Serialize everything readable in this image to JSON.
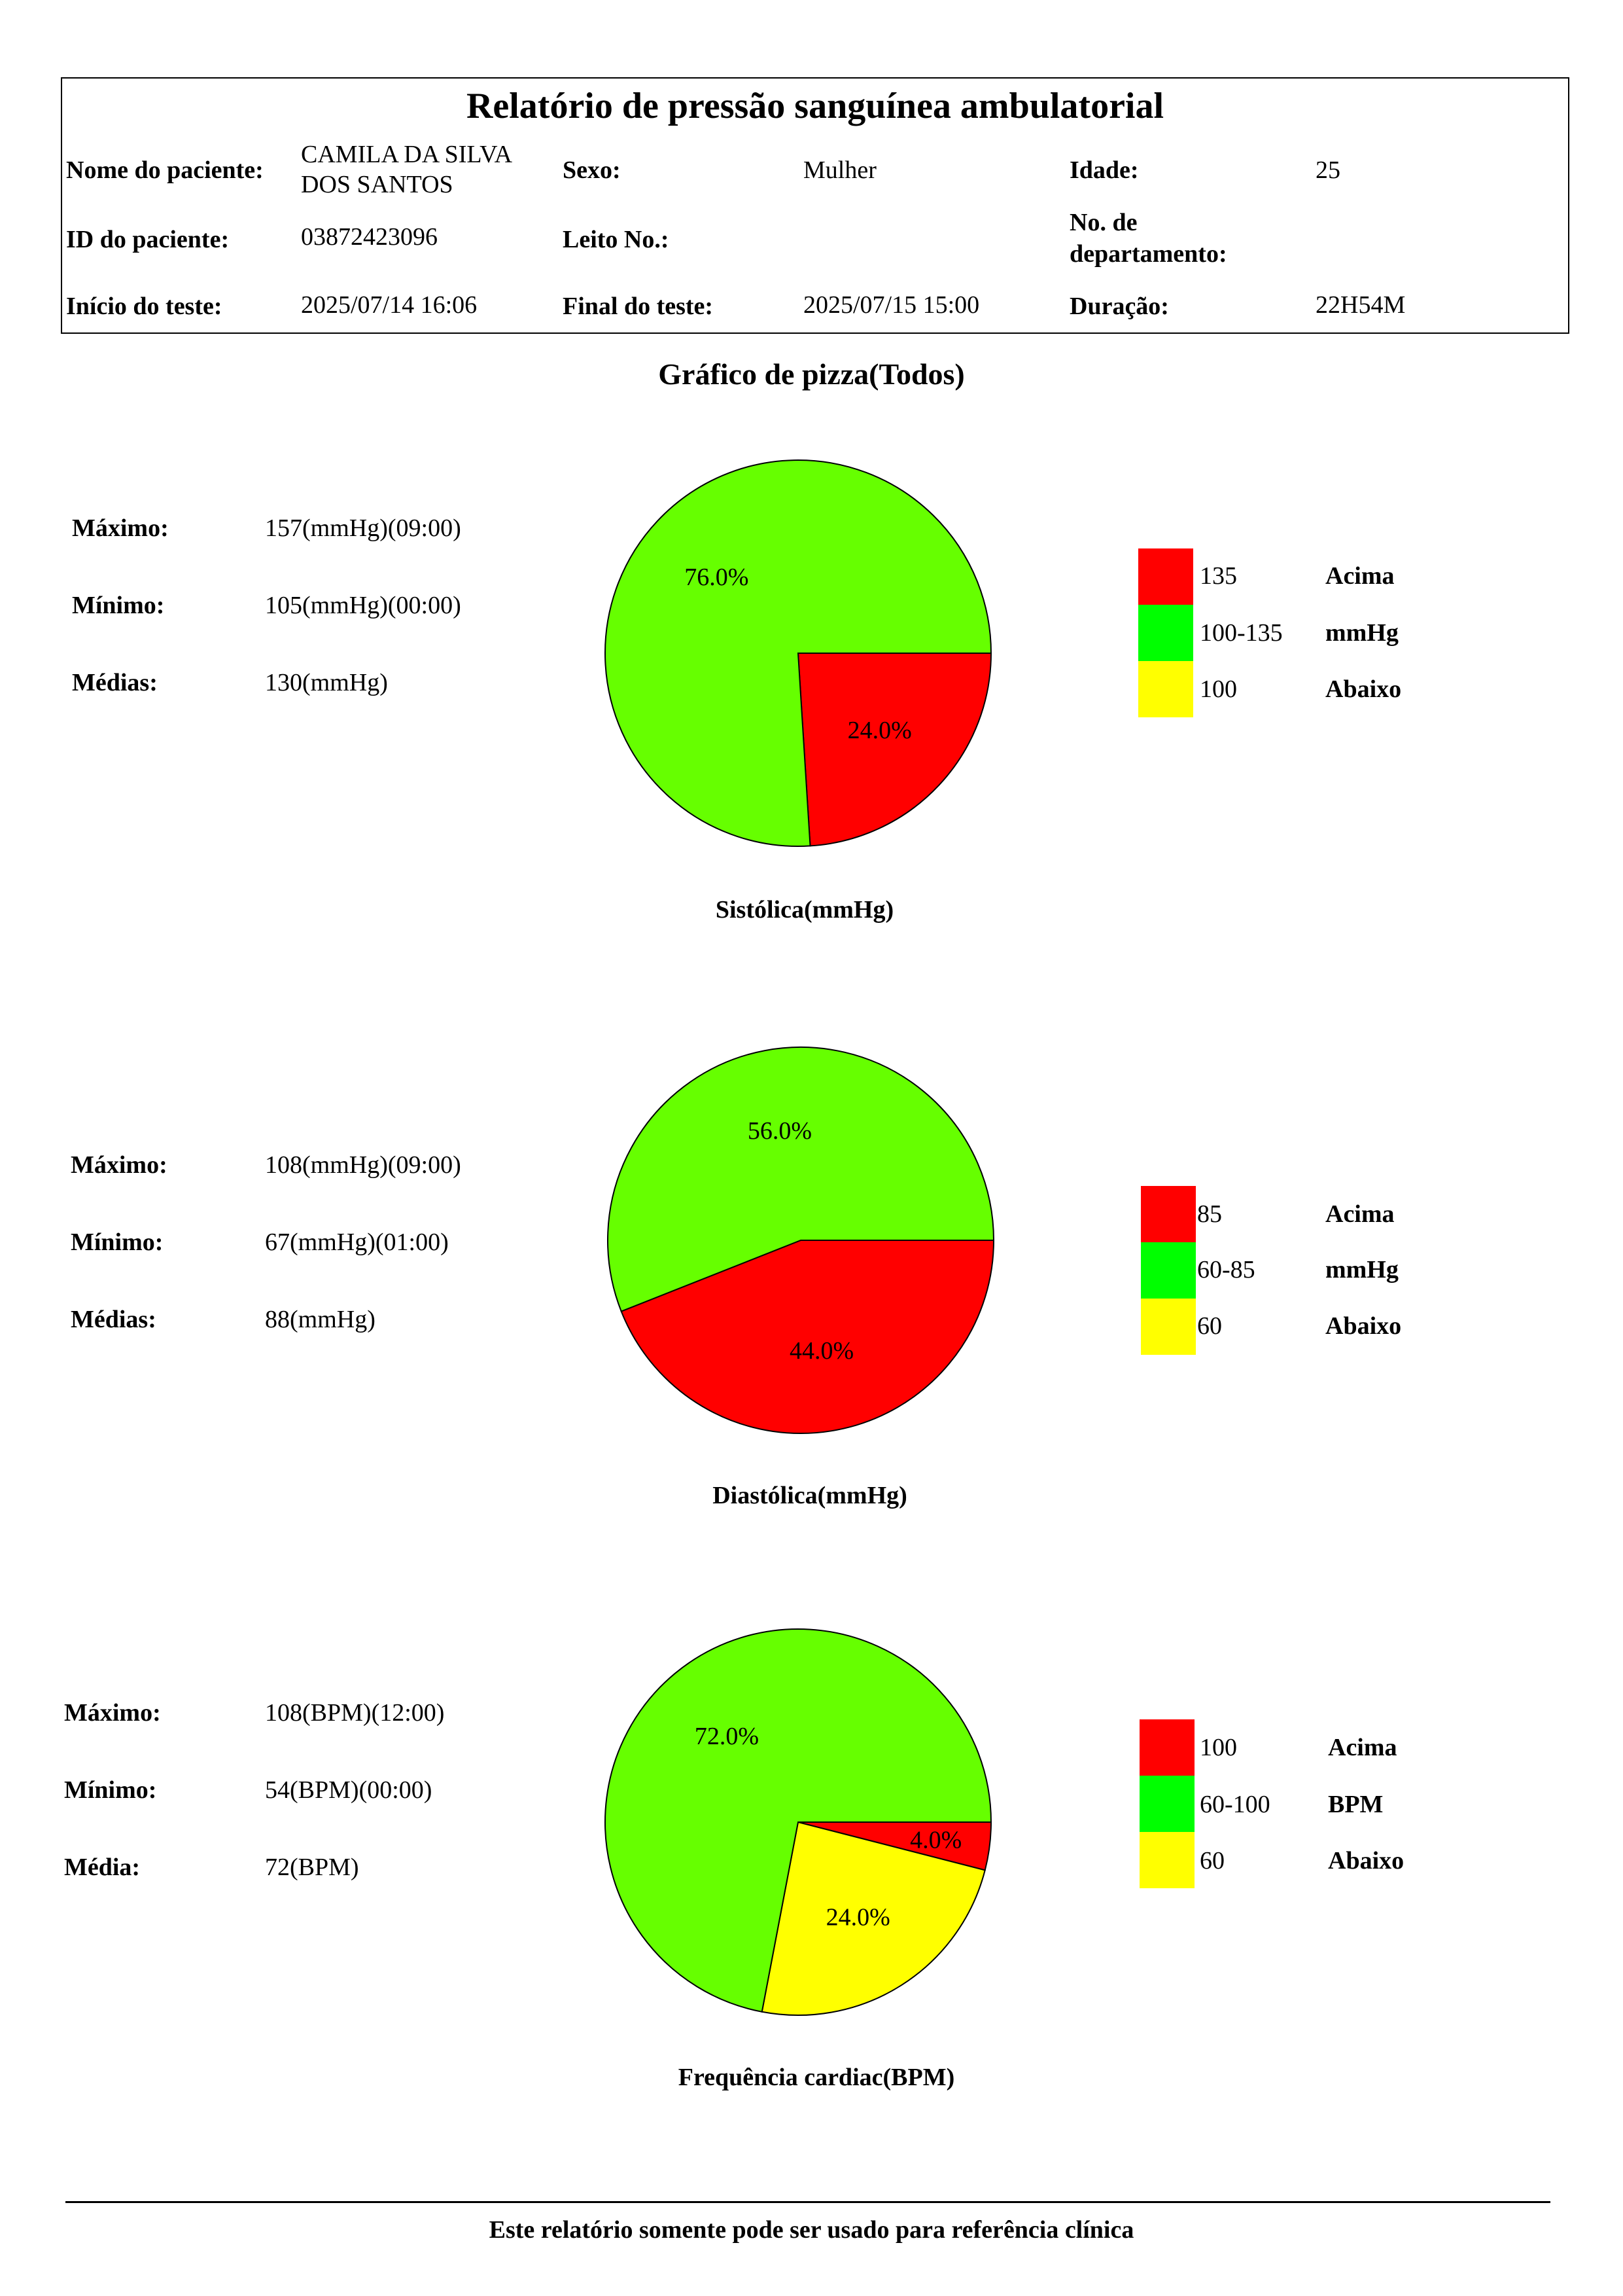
{
  "header": {
    "title": "Relatório de pressão sanguínea ambulatorial",
    "patient_name_label": "Nome do paciente:",
    "patient_name_line1": "CAMILA DA SILVA",
    "patient_name_line2": "DOS SANTOS",
    "sex_label": "Sexo:",
    "sex_value": "Mulher",
    "age_label": "Idade:",
    "age_value": "25",
    "patient_id_label": "ID do paciente:",
    "patient_id_value": "03872423096",
    "bed_label": "Leito No.:",
    "bed_value": "",
    "department_label_line1": "No. de",
    "department_label_line2": "departamento:",
    "department_value": "",
    "start_label": "Início do teste:",
    "start_value": "2025/07/14 16:06",
    "end_label": "Final do teste:",
    "end_value": "2025/07/15 15:00",
    "duration_label": "Duração:",
    "duration_value": "22H54M"
  },
  "section_title": "Gráfico de pizza(Todos)",
  "colors": {
    "above": "#ff0000",
    "normal": "#66ff00",
    "below": "#ffff00",
    "legend_normal": "#00ff00"
  },
  "chart_data": [
    {
      "type": "pie",
      "title": "Sistólica(mmHg)",
      "slices": [
        {
          "category": "Acima",
          "value": 24.0,
          "label": "24.0%",
          "color": "#ff0000"
        },
        {
          "category": "mmHg",
          "value": 76.0,
          "label": "76.0%",
          "color": "#66ff00"
        },
        {
          "category": "Abaixo",
          "value": 0.0,
          "label": "",
          "color": "#ffff00"
        }
      ],
      "stats": [
        {
          "label": "Máximo:",
          "value": "157(mmHg)(09:00)"
        },
        {
          "label": "Mínimo:",
          "value": "105(mmHg)(00:00)"
        },
        {
          "label": "Médias:",
          "value": "130(mmHg)"
        }
      ],
      "legend": [
        {
          "range": "135",
          "text": "Acima",
          "color": "#ff0000"
        },
        {
          "range": "100-135",
          "text": "mmHg",
          "color": "#00ff00"
        },
        {
          "range": "100",
          "text": "Abaixo",
          "color": "#ffff00"
        }
      ]
    },
    {
      "type": "pie",
      "title": "Diastólica(mmHg)",
      "slices": [
        {
          "category": "Acima",
          "value": 44.0,
          "label": "44.0%",
          "color": "#ff0000"
        },
        {
          "category": "mmHg",
          "value": 56.0,
          "label": "56.0%",
          "color": "#66ff00"
        },
        {
          "category": "Abaixo",
          "value": 0.0,
          "label": "",
          "color": "#ffff00"
        }
      ],
      "stats": [
        {
          "label": "Máximo:",
          "value": "108(mmHg)(09:00)"
        },
        {
          "label": "Mínimo:",
          "value": "67(mmHg)(01:00)"
        },
        {
          "label": "Médias:",
          "value": "88(mmHg)"
        }
      ],
      "legend": [
        {
          "range": "85",
          "text": "Acima",
          "color": "#ff0000"
        },
        {
          "range": "60-85",
          "text": "mmHg",
          "color": "#00ff00"
        },
        {
          "range": "60",
          "text": "Abaixo",
          "color": "#ffff00"
        }
      ]
    },
    {
      "type": "pie",
      "title": "Frequência cardiac(BPM)",
      "slices": [
        {
          "category": "Acima",
          "value": 4.0,
          "label": "4.0%",
          "color": "#ff0000"
        },
        {
          "category": "BPM",
          "value": 72.0,
          "label": "72.0%",
          "color": "#66ff00"
        },
        {
          "category": "Abaixo",
          "value": 24.0,
          "label": "24.0%",
          "color": "#ffff00"
        }
      ],
      "stats": [
        {
          "label": "Máximo:",
          "value": "108(BPM)(12:00)"
        },
        {
          "label": "Mínimo:",
          "value": "54(BPM)(00:00)"
        },
        {
          "label": "Média:",
          "value": "72(BPM)"
        }
      ],
      "legend": [
        {
          "range": "100",
          "text": "Acima",
          "color": "#ff0000"
        },
        {
          "range": "60-100",
          "text": "BPM",
          "color": "#00ff00"
        },
        {
          "range": "60",
          "text": "Abaixo",
          "color": "#ffff00"
        }
      ]
    }
  ],
  "footer": {
    "note": "Este relatório somente pode ser usado para referência clínica"
  }
}
